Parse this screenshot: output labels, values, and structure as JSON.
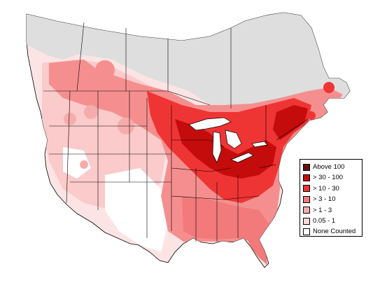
{
  "legend": {
    "items": [
      {
        "label": "Above 100",
        "color": "#6b0d0d"
      },
      {
        "label": "> 30 - 100",
        "color": "#c40c0c"
      },
      {
        "label": "> 10 - 30",
        "color": "#ef3434"
      },
      {
        "label": "> 3 - 10",
        "color": "#f27a7a"
      },
      {
        "label": "> 1 - 3",
        "color": "#f7acac"
      },
      {
        "label": "0.05 - 1",
        "color": "#fcdada"
      },
      {
        "label": "None Counted",
        "color": "#ffffff"
      }
    ]
  },
  "colors": {
    "no_data": "#dedede",
    "boundary": "#000000"
  }
}
